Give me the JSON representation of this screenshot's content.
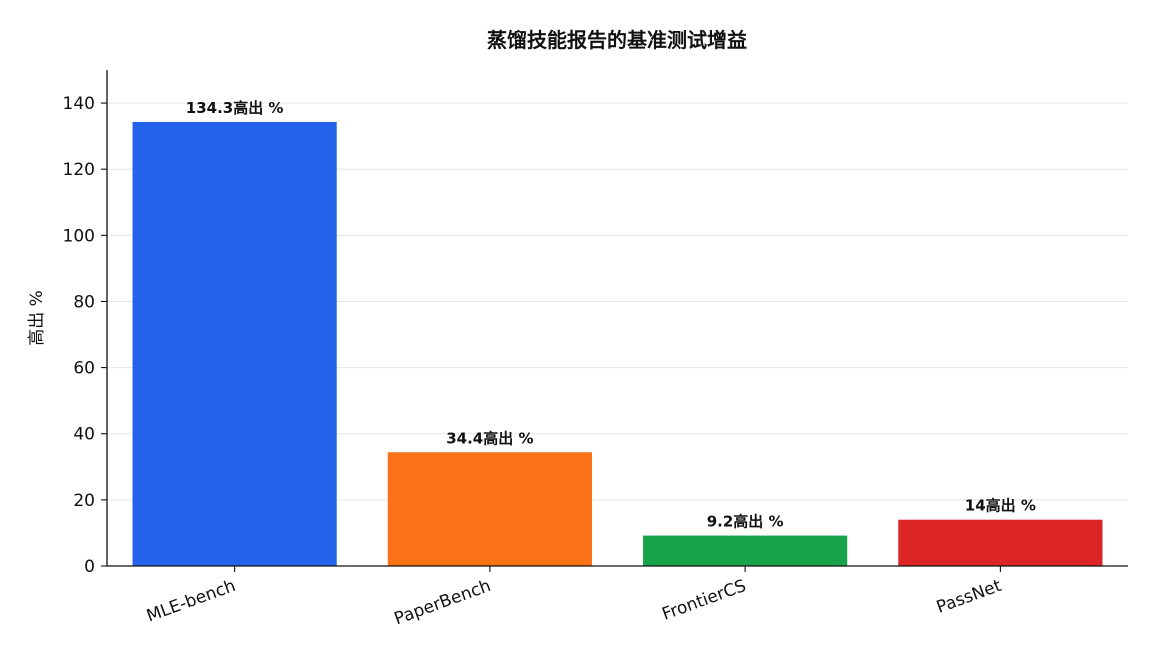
{
  "chart_data": {
    "type": "bar",
    "title": "蒸馏技能报告的基准测试增益",
    "xlabel": "",
    "ylabel": "高出 %",
    "categories": [
      "MLE-bench",
      "PaperBench",
      "FrontierCS",
      "PassNet"
    ],
    "values": [
      134.3,
      34.4,
      9.2,
      14
    ],
    "data_labels": [
      "134.3高出 %",
      "34.4高出 %",
      "9.2高出 %",
      "14高出 %"
    ],
    "colors": [
      "#2563eb",
      "#f97316",
      "#16a34a",
      "#dc2626"
    ],
    "ylim": [
      0,
      150
    ],
    "yticks": [
      0,
      20,
      40,
      60,
      80,
      100,
      120,
      140
    ],
    "grid": true,
    "legend": "none"
  }
}
